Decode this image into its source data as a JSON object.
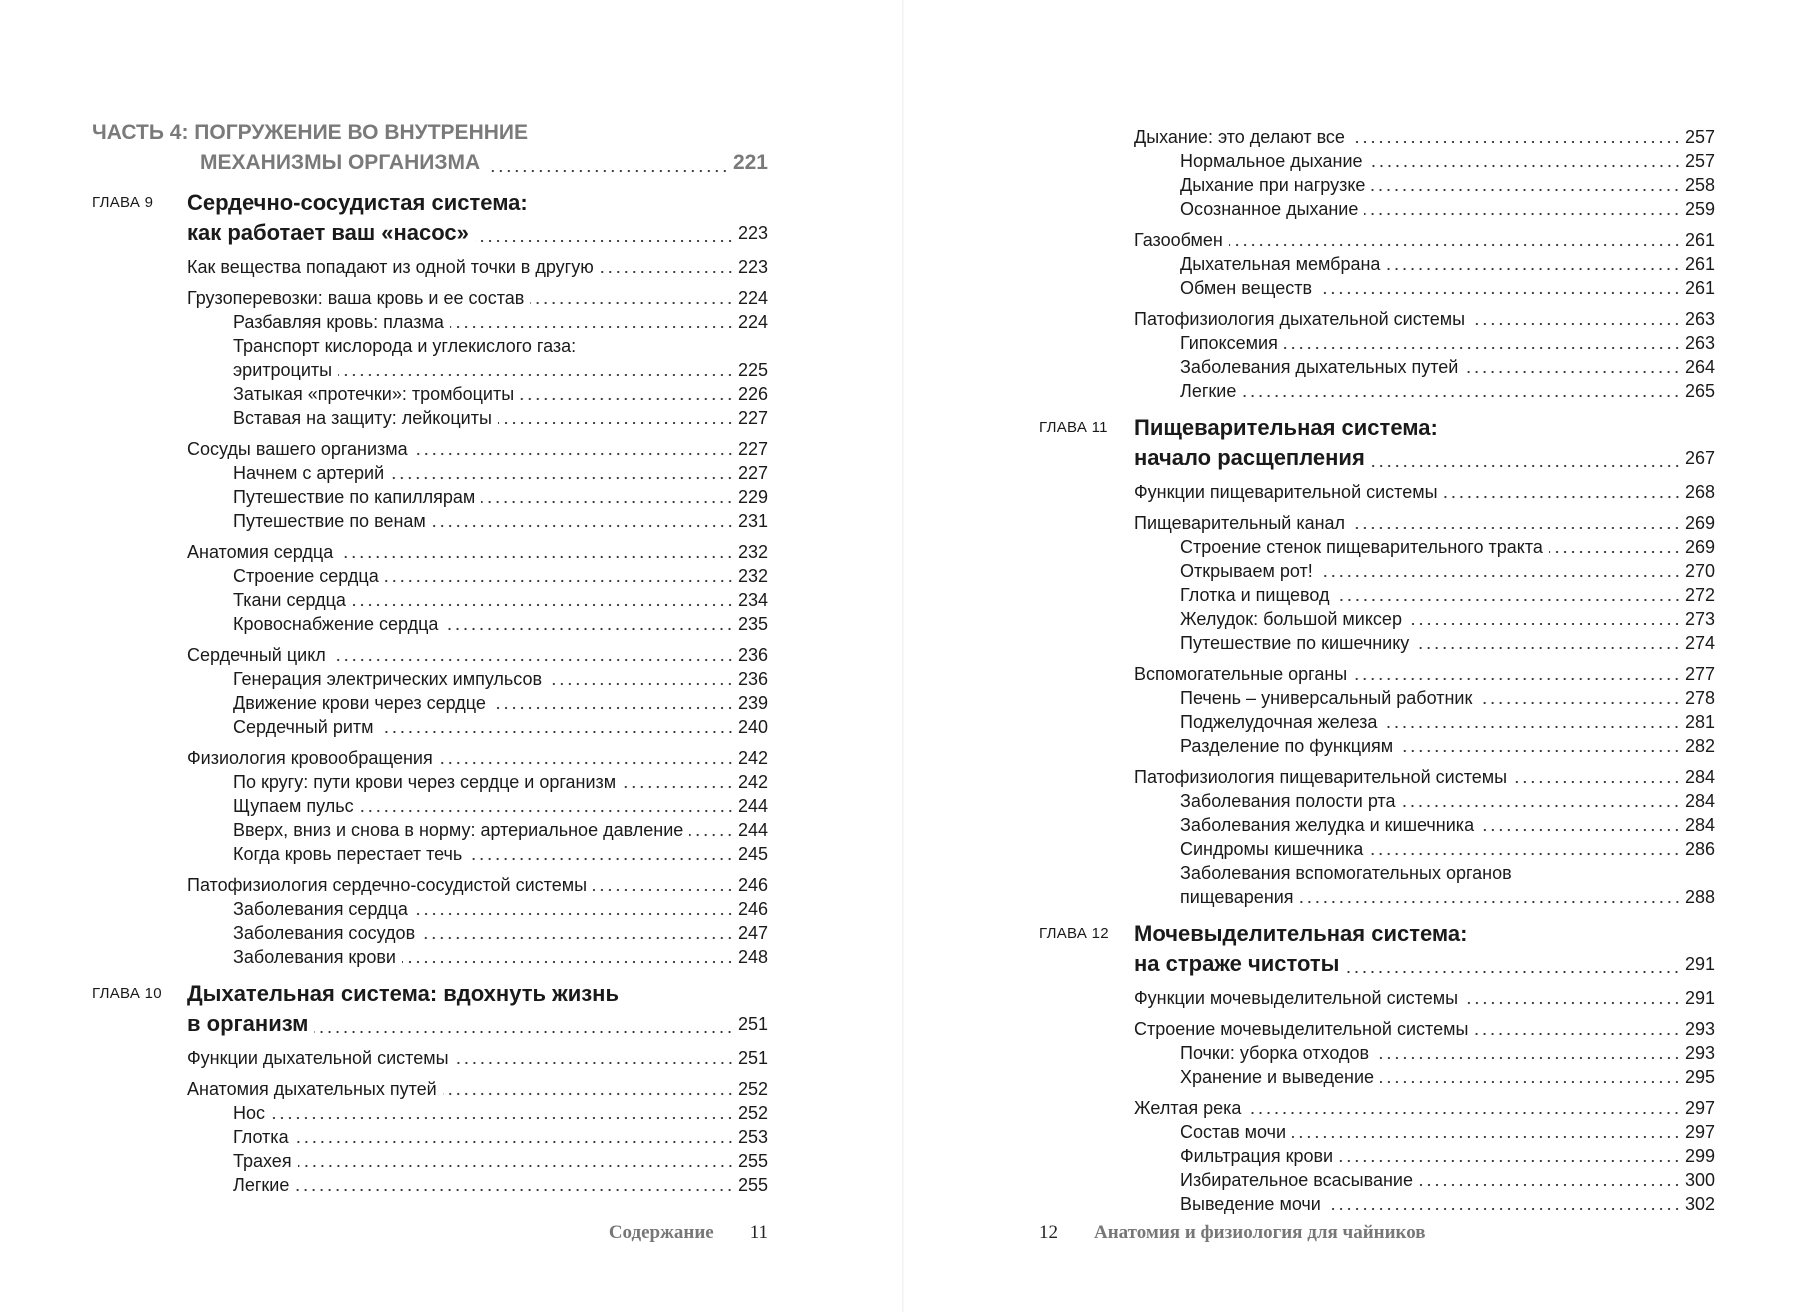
{
  "pages": [
    {
      "blocks": [
        {
          "kind": "part",
          "lines": [
            "ЧАСТЬ 4: ПОГРУЖЕНИЕ ВО ВНУТРЕННИЕ",
            "МЕХАНИЗМЫ ОРГАНИЗМА"
          ],
          "page": "221"
        },
        {
          "kind": "chapter",
          "label": "ГЛАВА 9",
          "lines": [
            "Сердечно-сосудистая система:",
            "как работает ваш «насос»"
          ],
          "page": "223"
        },
        {
          "kind": "group",
          "items": [
            {
              "level": "sec",
              "lines": [
                "Как вещества попадают из одной точки в другую"
              ],
              "page": "223"
            }
          ]
        },
        {
          "kind": "group",
          "items": [
            {
              "level": "sec",
              "lines": [
                "Грузоперевозки: ваша кровь и ее состав"
              ],
              "page": "224"
            },
            {
              "level": "sub",
              "lines": [
                "Разбавляя кровь: плазма"
              ],
              "page": "224"
            },
            {
              "level": "sub",
              "lines": [
                "Транспорт кислорода и углекислого газа:",
                "эритроциты"
              ],
              "page": "225"
            },
            {
              "level": "sub",
              "lines": [
                "Затыкая «протечки»: тромбоциты"
              ],
              "page": "226"
            },
            {
              "level": "sub",
              "lines": [
                "Вставая на защиту: лейкоциты"
              ],
              "page": "227"
            }
          ]
        },
        {
          "kind": "group",
          "items": [
            {
              "level": "sec",
              "lines": [
                "Сосуды вашего организма"
              ],
              "page": "227"
            },
            {
              "level": "sub",
              "lines": [
                "Начнем с артерий"
              ],
              "page": "227"
            },
            {
              "level": "sub",
              "lines": [
                "Путешествие по капиллярам"
              ],
              "page": "229"
            },
            {
              "level": "sub",
              "lines": [
                "Путешествие по венам"
              ],
              "page": "231"
            }
          ]
        },
        {
          "kind": "group",
          "items": [
            {
              "level": "sec",
              "lines": [
                "Анатомия сердца"
              ],
              "page": "232"
            },
            {
              "level": "sub",
              "lines": [
                "Строение сердца"
              ],
              "page": "232"
            },
            {
              "level": "sub",
              "lines": [
                "Ткани сердца"
              ],
              "page": "234"
            },
            {
              "level": "sub",
              "lines": [
                "Кровоснабжение сердца"
              ],
              "page": "235"
            }
          ]
        },
        {
          "kind": "group",
          "items": [
            {
              "level": "sec",
              "lines": [
                "Сердечный цикл"
              ],
              "page": "236"
            },
            {
              "level": "sub",
              "lines": [
                "Генерация электрических импульсов"
              ],
              "page": "236"
            },
            {
              "level": "sub",
              "lines": [
                "Движение крови через сердце"
              ],
              "page": "239"
            },
            {
              "level": "sub",
              "lines": [
                "Сердечный ритм"
              ],
              "page": "240"
            }
          ]
        },
        {
          "kind": "group",
          "items": [
            {
              "level": "sec",
              "lines": [
                "Физиология кровообращения"
              ],
              "page": "242"
            },
            {
              "level": "sub",
              "lines": [
                "По кругу: пути крови через сердце и организм"
              ],
              "page": "242"
            },
            {
              "level": "sub",
              "lines": [
                "Щупаем пульс"
              ],
              "page": "244"
            },
            {
              "level": "sub",
              "lines": [
                "Вверх, вниз и снова в норму: артериальное давление"
              ],
              "page": "244"
            },
            {
              "level": "sub",
              "lines": [
                "Когда кровь перестает течь"
              ],
              "page": "245"
            }
          ]
        },
        {
          "kind": "group",
          "items": [
            {
              "level": "sec",
              "lines": [
                "Патофизиология сердечно-сосудистой системы"
              ],
              "page": "246"
            },
            {
              "level": "sub",
              "lines": [
                "Заболевания сердца"
              ],
              "page": "246"
            },
            {
              "level": "sub",
              "lines": [
                "Заболевания сосудов"
              ],
              "page": "247"
            },
            {
              "level": "sub",
              "lines": [
                "Заболевания крови"
              ],
              "page": "248"
            }
          ]
        },
        {
          "kind": "chapter",
          "label": "ГЛАВА 10",
          "lines": [
            "Дыхательная система: вдохнуть жизнь",
            "в организм"
          ],
          "page": "251"
        },
        {
          "kind": "group",
          "items": [
            {
              "level": "sec",
              "lines": [
                "Функции дыхательной системы"
              ],
              "page": "251"
            }
          ]
        },
        {
          "kind": "group",
          "items": [
            {
              "level": "sec",
              "lines": [
                "Анатомия дыхательных путей"
              ],
              "page": "252"
            },
            {
              "level": "sub",
              "lines": [
                "Нос"
              ],
              "page": "252"
            },
            {
              "level": "sub",
              "lines": [
                "Глотка"
              ],
              "page": "253"
            },
            {
              "level": "sub",
              "lines": [
                "Трахея"
              ],
              "page": "255"
            },
            {
              "level": "sub",
              "lines": [
                "Легкие"
              ],
              "page": "255"
            }
          ]
        }
      ],
      "footer": {
        "title": "Содержание",
        "number": "11"
      }
    },
    {
      "blocks": [
        {
          "kind": "group",
          "items": [
            {
              "level": "sec",
              "lines": [
                "Дыхание: это делают все"
              ],
              "page": "257"
            },
            {
              "level": "sub",
              "lines": [
                "Нормальное дыхание"
              ],
              "page": "257"
            },
            {
              "level": "sub",
              "lines": [
                "Дыхание при нагрузке"
              ],
              "page": "258"
            },
            {
              "level": "sub",
              "lines": [
                "Осознанное дыхание"
              ],
              "page": "259"
            }
          ]
        },
        {
          "kind": "group",
          "items": [
            {
              "level": "sec",
              "lines": [
                "Газообмен"
              ],
              "page": "261"
            },
            {
              "level": "sub",
              "lines": [
                "Дыхательная мембрана"
              ],
              "page": "261"
            },
            {
              "level": "sub",
              "lines": [
                "Обмен веществ"
              ],
              "page": "261"
            }
          ]
        },
        {
          "kind": "group",
          "items": [
            {
              "level": "sec",
              "lines": [
                "Патофизиология дыхательной системы"
              ],
              "page": "263"
            },
            {
              "level": "sub",
              "lines": [
                "Гипоксемия"
              ],
              "page": "263"
            },
            {
              "level": "sub",
              "lines": [
                "Заболевания дыхательных путей"
              ],
              "page": "264"
            },
            {
              "level": "sub",
              "lines": [
                "Легкие"
              ],
              "page": "265"
            }
          ]
        },
        {
          "kind": "chapter",
          "label": "ГЛАВА 11",
          "lines": [
            "Пищеварительная система:",
            "начало расщепления"
          ],
          "page": "267"
        },
        {
          "kind": "group",
          "items": [
            {
              "level": "sec",
              "lines": [
                "Функции пищеварительной системы"
              ],
              "page": "268"
            }
          ]
        },
        {
          "kind": "group",
          "items": [
            {
              "level": "sec",
              "lines": [
                "Пищеварительный канал"
              ],
              "page": "269"
            },
            {
              "level": "sub",
              "lines": [
                "Строение стенок пищеварительного тракта"
              ],
              "page": "269"
            },
            {
              "level": "sub",
              "lines": [
                "Открываем рот!"
              ],
              "page": "270"
            },
            {
              "level": "sub",
              "lines": [
                "Глотка и пищевод"
              ],
              "page": "272"
            },
            {
              "level": "sub",
              "lines": [
                "Желудок: большой миксер"
              ],
              "page": "273"
            },
            {
              "level": "sub",
              "lines": [
                "Путешествие по кишечнику"
              ],
              "page": "274"
            }
          ]
        },
        {
          "kind": "group",
          "items": [
            {
              "level": "sec",
              "lines": [
                "Вспомогательные органы"
              ],
              "page": "277"
            },
            {
              "level": "sub",
              "lines": [
                "Печень – универсальный работник"
              ],
              "page": "278"
            },
            {
              "level": "sub",
              "lines": [
                "Поджелудочная железа"
              ],
              "page": "281"
            },
            {
              "level": "sub",
              "lines": [
                "Разделение по функциям"
              ],
              "page": "282"
            }
          ]
        },
        {
          "kind": "group",
          "items": [
            {
              "level": "sec",
              "lines": [
                "Патофизиология пищеварительной системы"
              ],
              "page": "284"
            },
            {
              "level": "sub",
              "lines": [
                "Заболевания полости рта"
              ],
              "page": "284"
            },
            {
              "level": "sub",
              "lines": [
                "Заболевания желудка и кишечника"
              ],
              "page": "284"
            },
            {
              "level": "sub",
              "lines": [
                "Синдромы кишечника"
              ],
              "page": "286"
            },
            {
              "level": "sub",
              "lines": [
                "Заболевания вспомогательных органов",
                "пищеварения"
              ],
              "page": "288"
            }
          ]
        },
        {
          "kind": "chapter",
          "label": "ГЛАВА 12",
          "lines": [
            "Мочевыделительная система:",
            "на страже чистоты"
          ],
          "page": "291"
        },
        {
          "kind": "group",
          "items": [
            {
              "level": "sec",
              "lines": [
                "Функции мочевыделительной системы"
              ],
              "page": "291"
            }
          ]
        },
        {
          "kind": "group",
          "items": [
            {
              "level": "sec",
              "lines": [
                "Строение мочевыделительной системы"
              ],
              "page": "293"
            },
            {
              "level": "sub",
              "lines": [
                "Почки: уборка отходов"
              ],
              "page": "293"
            },
            {
              "level": "sub",
              "lines": [
                "Хранение и выведение"
              ],
              "page": "295"
            }
          ]
        },
        {
          "kind": "group",
          "items": [
            {
              "level": "sec",
              "lines": [
                "Желтая река"
              ],
              "page": "297"
            },
            {
              "level": "sub",
              "lines": [
                "Состав мочи"
              ],
              "page": "297"
            },
            {
              "level": "sub",
              "lines": [
                "Фильтрация крови"
              ],
              "page": "299"
            },
            {
              "level": "sub",
              "lines": [
                "Избирательное всасывание"
              ],
              "page": "300"
            },
            {
              "level": "sub",
              "lines": [
                "Выведение мочи"
              ],
              "page": "302"
            }
          ]
        }
      ],
      "footer": {
        "number": "12",
        "title": "Анатомия и физиология для чайников"
      }
    }
  ]
}
